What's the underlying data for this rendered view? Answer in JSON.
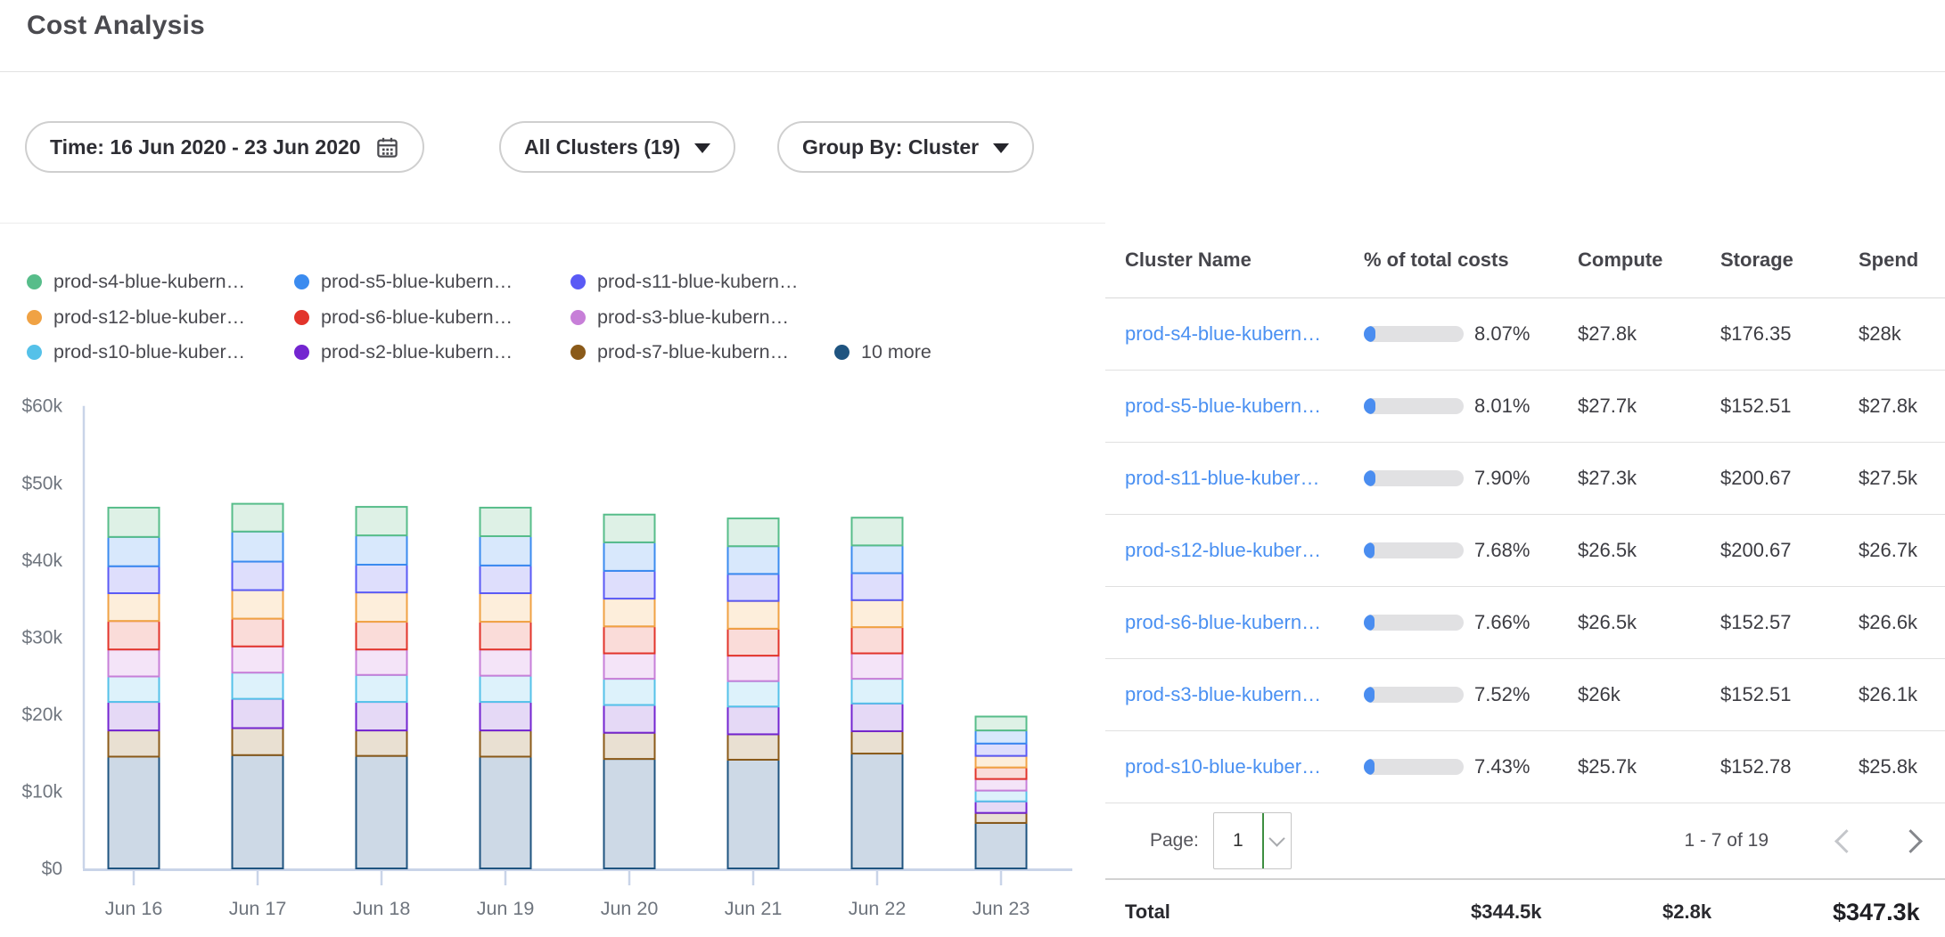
{
  "page": {
    "title": "Cost Analysis"
  },
  "filters": {
    "time": {
      "label": "Time: 16 Jun 2020 - 23 Jun 2020",
      "icon": "calendar"
    },
    "clusters": {
      "label": "All Clusters (19)"
    },
    "group_by": {
      "label": "Group By: Cluster"
    }
  },
  "legend": [
    {
      "label": "prod-s4-blue-kubern…",
      "color": "#57bd8a"
    },
    {
      "label": "prod-s5-blue-kubern…",
      "color": "#3b8bef"
    },
    {
      "label": "prod-s11-blue-kubern…",
      "color": "#5a5af5"
    },
    {
      "label": "prod-s12-blue-kuber…",
      "color": "#f0a244"
    },
    {
      "label": "prod-s6-blue-kubern…",
      "color": "#e2342b"
    },
    {
      "label": "prod-s3-blue-kubern…",
      "color": "#c77fd8"
    },
    {
      "label": "prod-s10-blue-kuber…",
      "color": "#55c1e9"
    },
    {
      "label": "prod-s2-blue-kubern…",
      "color": "#7325d0"
    },
    {
      "label": "prod-s7-blue-kubern…",
      "color": "#8a5a19"
    },
    {
      "label": "10 more",
      "color": "#1f5480"
    }
  ],
  "chart_data": {
    "type": "bar",
    "stacked": true,
    "unit": "USD thousands per day",
    "categories": [
      "Jun 16",
      "Jun 17",
      "Jun 18",
      "Jun 19",
      "Jun 20",
      "Jun 21",
      "Jun 22",
      "Jun 23"
    ],
    "y_ticks": [
      {
        "label": "$0",
        "value": 0
      },
      {
        "label": "$10k",
        "value": 10
      },
      {
        "label": "$20k",
        "value": 20
      },
      {
        "label": "$30k",
        "value": 30
      },
      {
        "label": "$40k",
        "value": 40
      },
      {
        "label": "$50k",
        "value": 50
      },
      {
        "label": "$60k",
        "value": 60
      }
    ],
    "ylim": [
      0,
      60
    ],
    "grid": false,
    "legend_position": "top",
    "series_bottom_to_top": [
      {
        "name": "10 more",
        "color": "#1f5480",
        "fill": "#cdd9e6",
        "values": [
          14.5,
          14.7,
          14.6,
          14.5,
          14.2,
          14.1,
          14.9,
          5.9
        ]
      },
      {
        "name": "prod-s7-blue-kubern…",
        "color": "#8a5a19",
        "fill": "#e9e0d2",
        "values": [
          3.4,
          3.5,
          3.3,
          3.4,
          3.4,
          3.3,
          2.9,
          1.3
        ]
      },
      {
        "name": "prod-s2-blue-kubern…",
        "color": "#7325d0",
        "fill": "#e5d9f6",
        "values": [
          3.7,
          3.8,
          3.7,
          3.7,
          3.6,
          3.6,
          3.6,
          1.5
        ]
      },
      {
        "name": "prod-s10-blue-kuber…",
        "color": "#55c1e9",
        "fill": "#ddf2fb",
        "values": [
          3.3,
          3.4,
          3.5,
          3.4,
          3.4,
          3.3,
          3.2,
          1.4
        ]
      },
      {
        "name": "prod-s3-blue-kubern…",
        "color": "#c77fd8",
        "fill": "#f4e4f8",
        "values": [
          3.5,
          3.4,
          3.3,
          3.4,
          3.3,
          3.3,
          3.3,
          1.5
        ]
      },
      {
        "name": "prod-s6-blue-kubern…",
        "color": "#e2342b",
        "fill": "#fadcd9",
        "values": [
          3.7,
          3.6,
          3.6,
          3.6,
          3.5,
          3.5,
          3.4,
          1.5
        ]
      },
      {
        "name": "prod-s12-blue-kuber…",
        "color": "#f0a244",
        "fill": "#fdeedb",
        "values": [
          3.6,
          3.7,
          3.8,
          3.7,
          3.6,
          3.6,
          3.5,
          1.5
        ]
      },
      {
        "name": "prod-s11-blue-kubern…",
        "color": "#5a5af5",
        "fill": "#dedefc",
        "values": [
          3.5,
          3.7,
          3.6,
          3.6,
          3.6,
          3.5,
          3.5,
          1.6
        ]
      },
      {
        "name": "prod-s5-blue-kubern…",
        "color": "#3b8bef",
        "fill": "#d8e8fc",
        "values": [
          3.8,
          3.9,
          3.8,
          3.8,
          3.7,
          3.6,
          3.6,
          1.7
        ]
      },
      {
        "name": "prod-s4-blue-kubern…",
        "color": "#57bd8a",
        "fill": "#def1e6",
        "values": [
          3.8,
          3.6,
          3.7,
          3.7,
          3.6,
          3.6,
          3.6,
          1.8
        ]
      }
    ]
  },
  "table": {
    "columns": [
      "Cluster Name",
      "% of total costs",
      "Compute",
      "Storage",
      "Spend"
    ],
    "rows": [
      {
        "name": "prod-s4-blue-kubern…",
        "pct": "8.07%",
        "pct_value": 8.07,
        "compute": "$27.8k",
        "storage": "$176.35",
        "spend": "$28k"
      },
      {
        "name": "prod-s5-blue-kubern…",
        "pct": "8.01%",
        "pct_value": 8.01,
        "compute": "$27.7k",
        "storage": "$152.51",
        "spend": "$27.8k"
      },
      {
        "name": "prod-s11-blue-kuber…",
        "pct": "7.90%",
        "pct_value": 7.9,
        "compute": "$27.3k",
        "storage": "$200.67",
        "spend": "$27.5k"
      },
      {
        "name": "prod-s12-blue-kuber…",
        "pct": "7.68%",
        "pct_value": 7.68,
        "compute": "$26.5k",
        "storage": "$200.67",
        "spend": "$26.7k"
      },
      {
        "name": "prod-s6-blue-kubern…",
        "pct": "7.66%",
        "pct_value": 7.66,
        "compute": "$26.5k",
        "storage": "$152.57",
        "spend": "$26.6k"
      },
      {
        "name": "prod-s3-blue-kubern…",
        "pct": "7.52%",
        "pct_value": 7.52,
        "compute": "$26k",
        "storage": "$152.51",
        "spend": "$26.1k"
      },
      {
        "name": "prod-s10-blue-kuber…",
        "pct": "7.43%",
        "pct_value": 7.43,
        "compute": "$25.7k",
        "storage": "$152.78",
        "spend": "$25.8k"
      }
    ],
    "pagination": {
      "label": "Page:",
      "page": "1",
      "range": "1 - 7 of 19"
    },
    "total": {
      "label": "Total",
      "compute": "$344.5k",
      "storage": "$2.8k",
      "spend": "$347.3k"
    }
  },
  "colors": {
    "link": "#4a90f2",
    "pct_fill": "#4a8df0",
    "axis": "#c9d4e8",
    "tick_text": "#6f757e"
  }
}
